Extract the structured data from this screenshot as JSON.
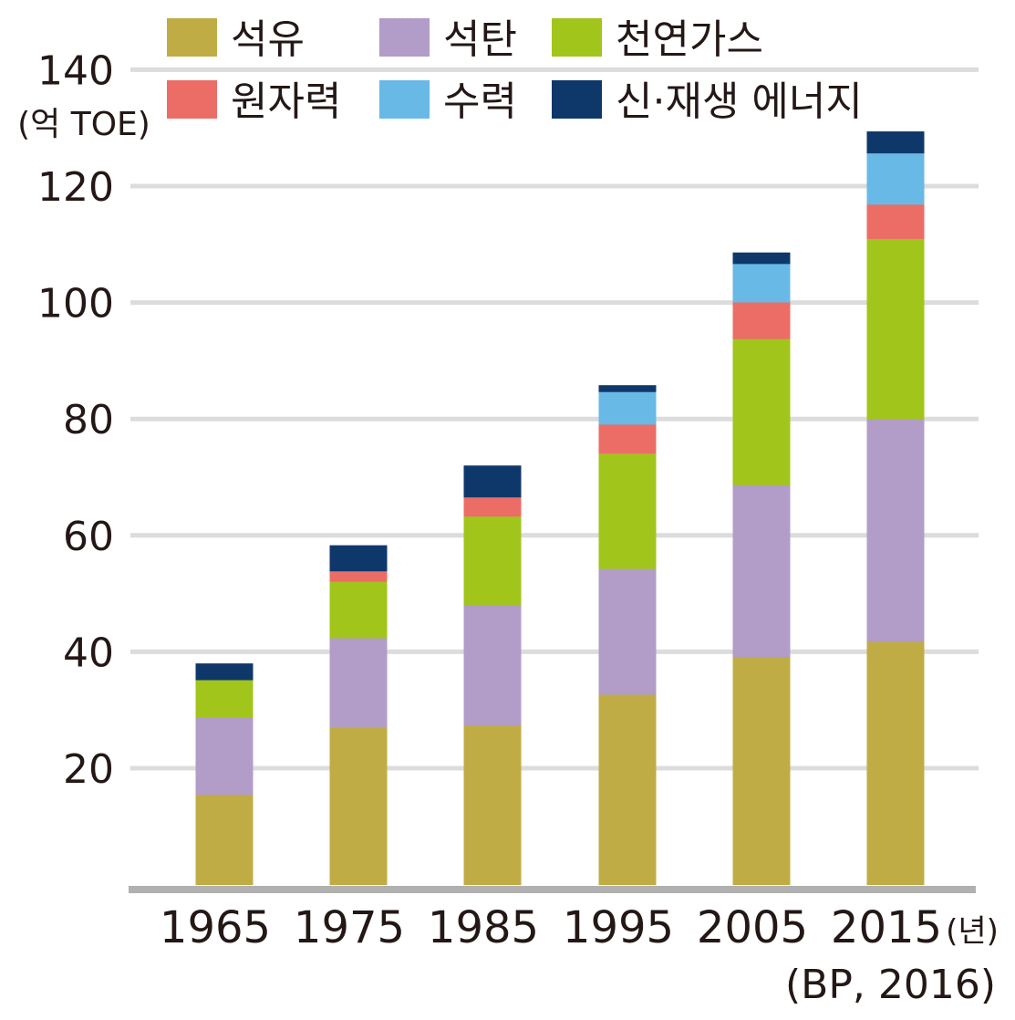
{
  "chart_data": {
    "type": "bar",
    "stacked": true,
    "title": "",
    "ylabel": "(억 TOE)",
    "xlabel_unit": "(년)",
    "source": "(BP, 2016)",
    "ylim": [
      0,
      140
    ],
    "yticks": [
      20,
      40,
      60,
      80,
      100,
      120,
      140
    ],
    "grid": true,
    "legend_position": "top",
    "categories": [
      "1965",
      "1975",
      "1985",
      "1995",
      "2005",
      "2015"
    ],
    "series": [
      {
        "name": "석유",
        "color": "#c0ac45",
        "values": [
          15.5,
          27.0,
          27.4,
          32.7,
          39.1,
          41.8
        ]
      },
      {
        "name": "석탄",
        "color": "#b29cc8",
        "values": [
          13.3,
          15.4,
          20.7,
          21.6,
          29.6,
          38.2
        ]
      },
      {
        "name": "천연가스",
        "color": "#a2c51c",
        "values": [
          6.4,
          9.7,
          15.2,
          19.8,
          25.1,
          31.0
        ]
      },
      {
        "name": "원자력",
        "color": "#ec6d66",
        "values": [
          0,
          1.8,
          3.3,
          5.0,
          6.3,
          5.9
        ]
      },
      {
        "name": "수력",
        "color": "#69b9e7",
        "values": [
          0,
          0,
          0,
          5.6,
          6.6,
          8.8
        ]
      },
      {
        "name": "신·재생 에너지",
        "color": "#0f386a",
        "values": [
          2.8,
          4.4,
          5.4,
          1.1,
          1.9,
          3.7
        ]
      }
    ]
  }
}
